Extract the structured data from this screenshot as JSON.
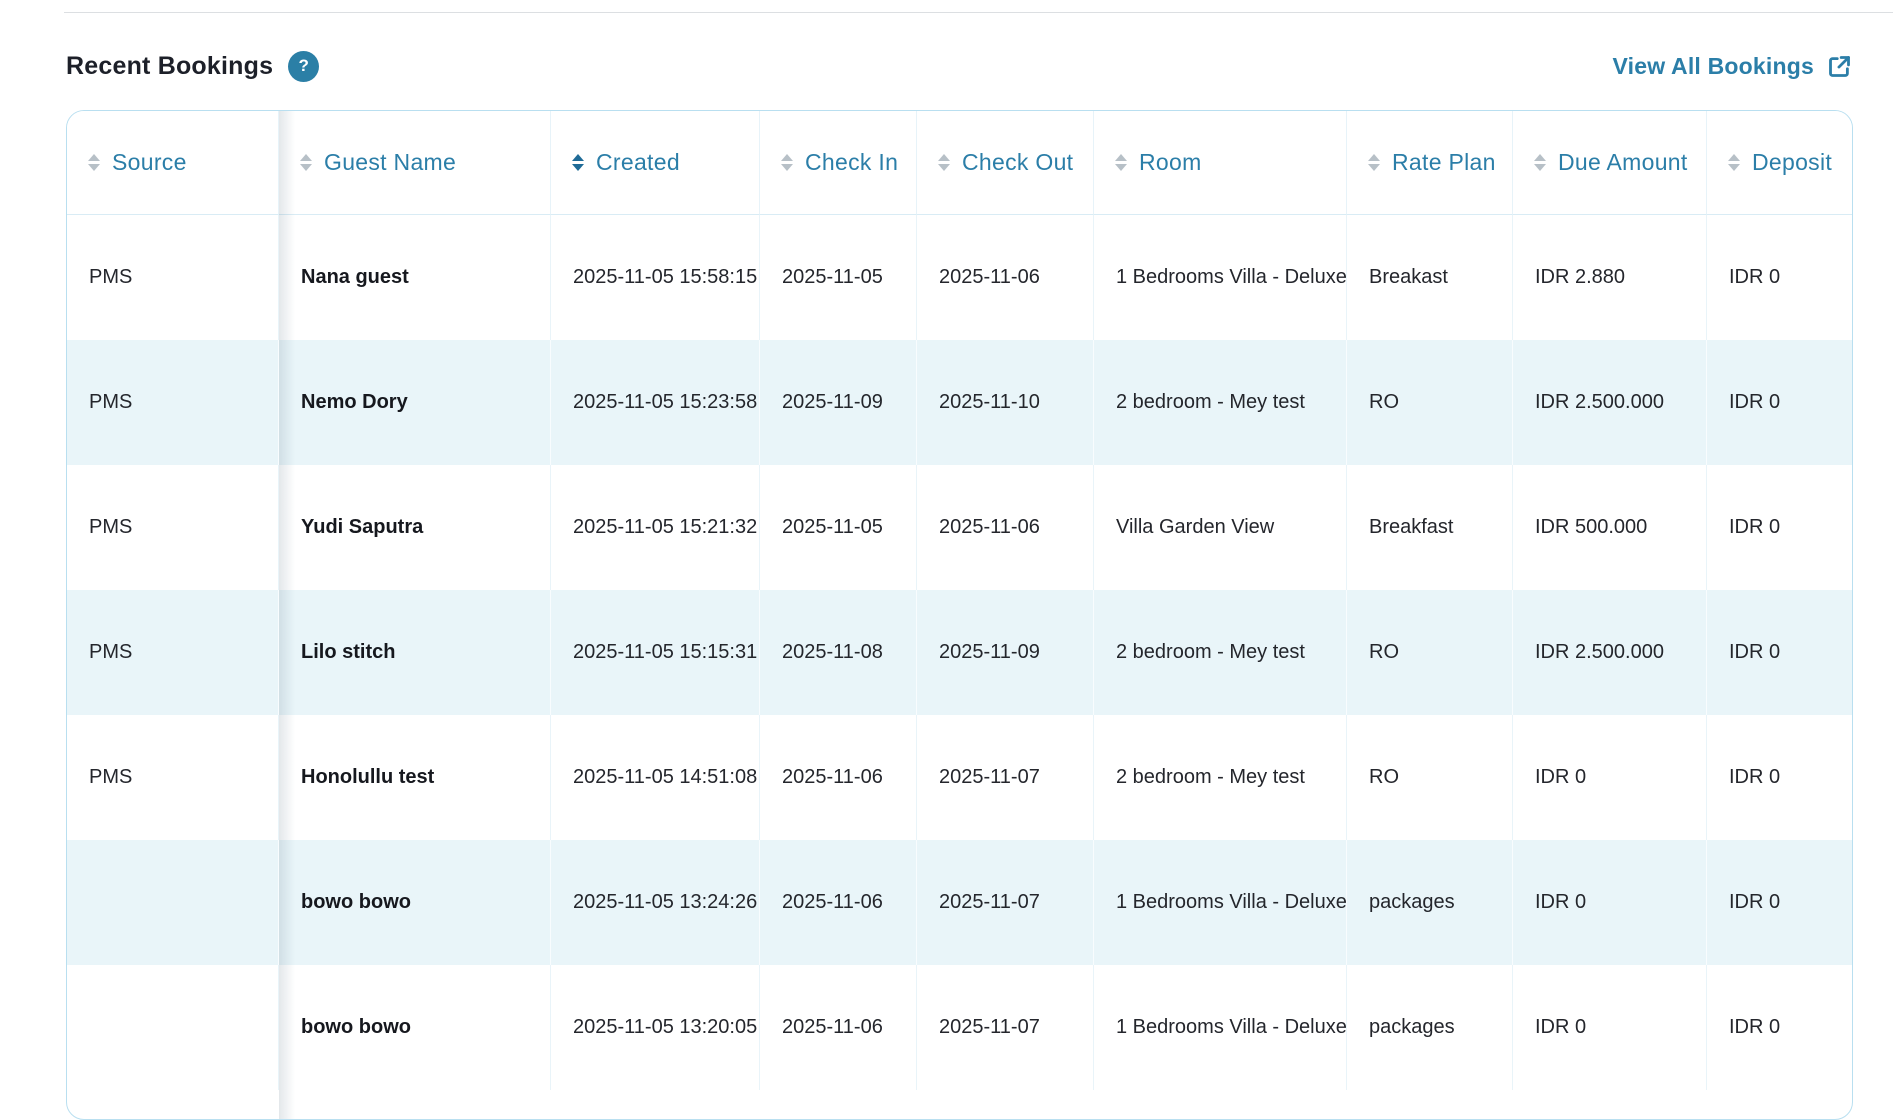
{
  "page": {
    "title": "Recent Bookings",
    "view_all_label": "View All Bookings"
  },
  "icons": {
    "help_icon": "?",
    "external_link_icon": "open-in-new-tab",
    "sort_icon": "up-down-triangles"
  },
  "colors": {
    "accent_blue": "#2b7ea8",
    "help_badge_bg": "#2b7fa6",
    "row_stripe": "#e9f5f9",
    "card_border": "#b9dff0",
    "active_sort_arrow": "#1f6b97",
    "inactive_sort_arrow": "#b7c0c7"
  },
  "table": {
    "columns": [
      {
        "key": "source",
        "label": "Source",
        "sort_active": false
      },
      {
        "key": "guest_name",
        "label": "Guest Name",
        "sort_active": false
      },
      {
        "key": "created",
        "label": "Created",
        "sort_active": true
      },
      {
        "key": "check_in",
        "label": "Check In",
        "sort_active": false
      },
      {
        "key": "check_out",
        "label": "Check Out",
        "sort_active": false
      },
      {
        "key": "room",
        "label": "Room",
        "sort_active": false
      },
      {
        "key": "rate_plan",
        "label": "Rate Plan",
        "sort_active": false
      },
      {
        "key": "due_amount",
        "label": "Due Amount",
        "sort_active": false
      },
      {
        "key": "deposit",
        "label": "Deposit",
        "sort_active": false
      }
    ],
    "rows": [
      {
        "source": "PMS",
        "guest_name": "Nana guest",
        "created": "2025-11-05 15:58:15",
        "check_in": "2025-11-05",
        "check_out": "2025-11-06",
        "room": "1 Bedrooms Villa - Deluxe",
        "rate_plan": "Breakast",
        "due_amount": "IDR 2.880",
        "deposit": "IDR 0"
      },
      {
        "source": "PMS",
        "guest_name": "Nemo Dory",
        "created": "2025-11-05 15:23:58",
        "check_in": "2025-11-09",
        "check_out": "2025-11-10",
        "room": "2 bedroom - Mey test",
        "rate_plan": "RO",
        "due_amount": "IDR 2.500.000",
        "deposit": "IDR 0"
      },
      {
        "source": "PMS",
        "guest_name": "Yudi Saputra",
        "created": "2025-11-05 15:21:32",
        "check_in": "2025-11-05",
        "check_out": "2025-11-06",
        "room": "Villa Garden View",
        "rate_plan": "Breakfast",
        "due_amount": "IDR 500.000",
        "deposit": "IDR 0"
      },
      {
        "source": "PMS",
        "guest_name": "Lilo stitch",
        "created": "2025-11-05 15:15:31",
        "check_in": "2025-11-08",
        "check_out": "2025-11-09",
        "room": "2 bedroom - Mey test",
        "rate_plan": "RO",
        "due_amount": "IDR 2.500.000",
        "deposit": "IDR 0"
      },
      {
        "source": "PMS",
        "guest_name": "Honolullu test",
        "created": "2025-11-05 14:51:08",
        "check_in": "2025-11-06",
        "check_out": "2025-11-07",
        "room": "2 bedroom - Mey test",
        "rate_plan": "RO",
        "due_amount": "IDR 0",
        "deposit": "IDR 0"
      },
      {
        "source": "",
        "guest_name": "bowo bowo",
        "created": "2025-11-05 13:24:26",
        "check_in": "2025-11-06",
        "check_out": "2025-11-07",
        "room": "1 Bedrooms Villa - Deluxe",
        "rate_plan": "packages",
        "due_amount": "IDR 0",
        "deposit": "IDR 0"
      },
      {
        "source": "",
        "guest_name": "bowo bowo",
        "created": "2025-11-05 13:20:05",
        "check_in": "2025-11-06",
        "check_out": "2025-11-07",
        "room": "1 Bedrooms Villa - Deluxe",
        "rate_plan": "packages",
        "due_amount": "IDR 0",
        "deposit": "IDR 0"
      }
    ]
  }
}
